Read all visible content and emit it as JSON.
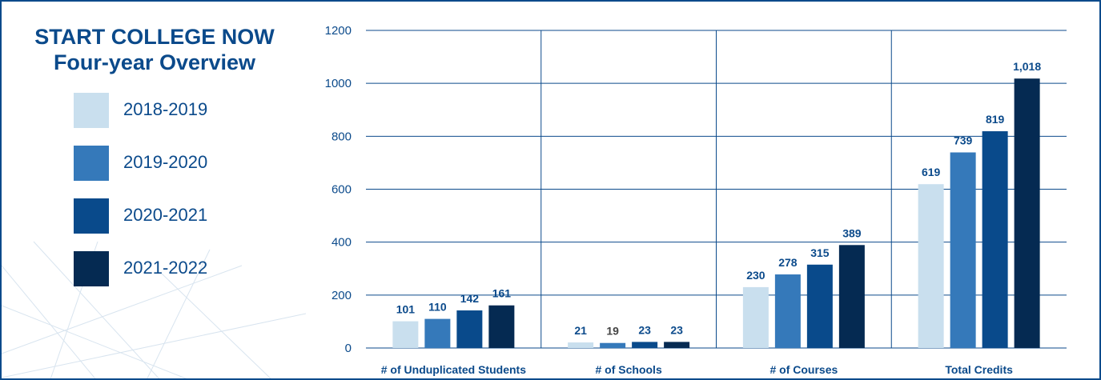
{
  "chart_data": {
    "type": "bar",
    "title": "START COLLEGE NOW",
    "subtitle": "Four-year Overview",
    "categories": [
      "# of Unduplicated Students",
      "# of Schools",
      "# of Courses",
      "Total Credits"
    ],
    "series": [
      {
        "name": "2018-2019",
        "color": "#c9dfee",
        "values": [
          101,
          21,
          230,
          619
        ],
        "labels": [
          "101",
          "21",
          "230",
          "619"
        ]
      },
      {
        "name": "2019-2020",
        "color": "#3579ba",
        "values": [
          110,
          19,
          278,
          739
        ],
        "labels": [
          "110",
          "19",
          "278",
          "739"
        ]
      },
      {
        "name": "2020-2021",
        "color": "#094a8b",
        "values": [
          142,
          23,
          315,
          819
        ],
        "labels": [
          "142",
          "23",
          "315",
          "819"
        ]
      },
      {
        "name": "2021-2022",
        "color": "#052a52",
        "values": [
          161,
          23,
          389,
          1018
        ],
        "labels": [
          "161",
          "23",
          "389",
          "1,018"
        ]
      }
    ],
    "ylim": [
      0,
      1200
    ],
    "yticks": [
      0,
      200,
      400,
      600,
      800,
      1000,
      1200
    ],
    "xlabel": "",
    "ylabel": "",
    "grid": true,
    "legend": "left"
  },
  "colors": {
    "text": "#0b4a8b",
    "label_dark": "#444444",
    "grid": "#0b4a8b"
  }
}
